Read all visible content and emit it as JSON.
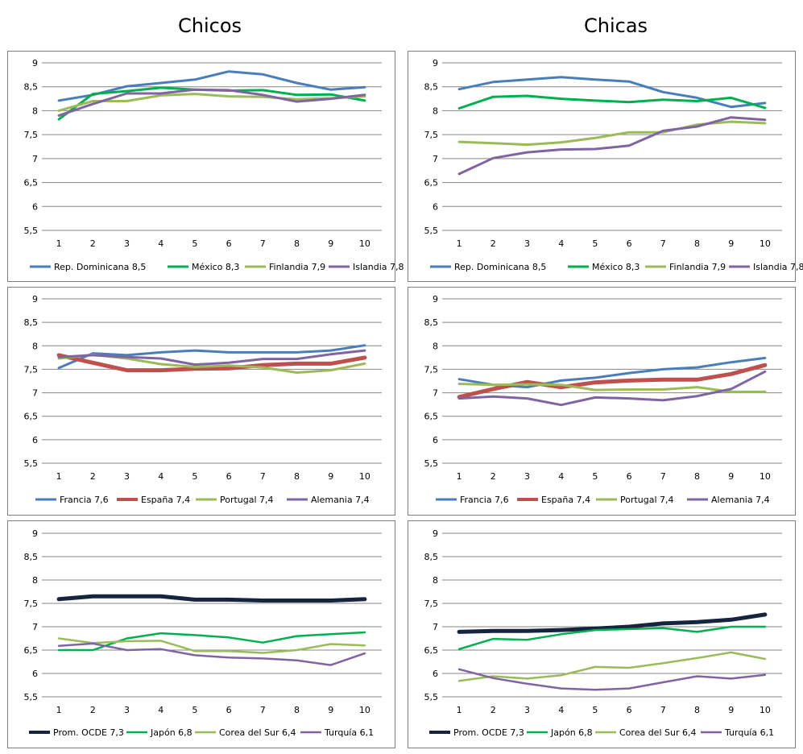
{
  "titles": {
    "left": "Chicos",
    "right": "Chicas"
  },
  "chart_data": [
    {
      "type": "line",
      "group": "Chicos",
      "x": [
        1,
        2,
        3,
        4,
        5,
        6,
        7,
        8,
        9,
        10
      ],
      "ylim": [
        5.5,
        9
      ],
      "yticks": [
        "5,5",
        "6",
        "6,5",
        "7",
        "7,5",
        "8",
        "8,5",
        "9"
      ],
      "grid": true,
      "legend": "bottom",
      "series": [
        {
          "name": "Rep. Dominicana 8,5",
          "color": "#4a7ebb",
          "width": 3,
          "values": [
            8.21,
            8.33,
            8.51,
            8.58,
            8.65,
            8.82,
            8.76,
            8.58,
            8.44,
            8.49
          ]
        },
        {
          "name": "México 8,3",
          "color": "#00b050",
          "width": 3,
          "values": [
            7.82,
            8.35,
            8.41,
            8.48,
            8.44,
            8.42,
            8.43,
            8.33,
            8.34,
            8.21
          ]
        },
        {
          "name": "Finlandia 7,9",
          "color": "#9bbb59",
          "width": 3,
          "values": [
            8.0,
            8.2,
            8.2,
            8.32,
            8.35,
            8.3,
            8.29,
            8.24,
            8.26,
            8.3
          ]
        },
        {
          "name": "Islandia 7,8",
          "color": "#8064a2",
          "width": 3,
          "values": [
            7.9,
            8.14,
            8.36,
            8.36,
            8.44,
            8.43,
            8.33,
            8.19,
            8.25,
            8.33
          ]
        }
      ]
    },
    {
      "type": "line",
      "group": "Chicas",
      "x": [
        1,
        2,
        3,
        4,
        5,
        6,
        7,
        8,
        9,
        10
      ],
      "ylim": [
        5.5,
        9
      ],
      "yticks": [
        "5,5",
        "6",
        "6,5",
        "7",
        "7,5",
        "8",
        "8,5",
        "9"
      ],
      "grid": true,
      "legend": "bottom",
      "series": [
        {
          "name": "Rep. Dominicana 8,5",
          "color": "#4a7ebb",
          "width": 3,
          "values": [
            8.45,
            8.6,
            8.65,
            8.7,
            8.65,
            8.61,
            8.39,
            8.27,
            8.08,
            8.16
          ]
        },
        {
          "name": "México 8,3",
          "color": "#00b050",
          "width": 3,
          "values": [
            8.05,
            8.29,
            8.31,
            8.25,
            8.21,
            8.18,
            8.23,
            8.2,
            8.27,
            8.06
          ]
        },
        {
          "name": "Finlandia 7,9",
          "color": "#9bbb59",
          "width": 3,
          "values": [
            7.35,
            7.32,
            7.29,
            7.34,
            7.43,
            7.55,
            7.55,
            7.71,
            7.77,
            7.74
          ]
        },
        {
          "name": "Islandia 7,8",
          "color": "#8064a2",
          "width": 3,
          "values": [
            6.68,
            7.01,
            7.13,
            7.19,
            7.2,
            7.27,
            7.58,
            7.67,
            7.86,
            7.81
          ]
        }
      ]
    },
    {
      "type": "line",
      "group": "Chicos",
      "x": [
        1,
        2,
        3,
        4,
        5,
        6,
        7,
        8,
        9,
        10
      ],
      "ylim": [
        5.5,
        9
      ],
      "yticks": [
        "5,5",
        "6",
        "6,5",
        "7",
        "7,5",
        "8",
        "8,5",
        "9"
      ],
      "grid": true,
      "legend": "bottom",
      "series": [
        {
          "name": "Francia 7,6",
          "color": "#4a7ebb",
          "width": 3,
          "values": [
            7.53,
            7.84,
            7.8,
            7.86,
            7.9,
            7.86,
            7.86,
            7.86,
            7.9,
            8.01
          ]
        },
        {
          "name": "España 7,4",
          "color": "#c0504d",
          "width": 5,
          "values": [
            7.8,
            7.64,
            7.48,
            7.48,
            7.51,
            7.52,
            7.59,
            7.62,
            7.62,
            7.75
          ]
        },
        {
          "name": "Portugal 7,4",
          "color": "#9bbb59",
          "width": 3,
          "values": [
            7.73,
            7.81,
            7.73,
            7.61,
            7.55,
            7.58,
            7.54,
            7.43,
            7.48,
            7.62
          ]
        },
        {
          "name": "Alemania 7,4",
          "color": "#8064a2",
          "width": 3,
          "values": [
            7.76,
            7.8,
            7.76,
            7.73,
            7.6,
            7.64,
            7.72,
            7.72,
            7.82,
            7.9
          ]
        }
      ]
    },
    {
      "type": "line",
      "group": "Chicas",
      "x": [
        1,
        2,
        3,
        4,
        5,
        6,
        7,
        8,
        9,
        10
      ],
      "ylim": [
        5.5,
        9
      ],
      "yticks": [
        "5,5",
        "6",
        "6,5",
        "7",
        "7,5",
        "8",
        "8,5",
        "9"
      ],
      "grid": true,
      "legend": "bottom",
      "series": [
        {
          "name": "Francia 7,6",
          "color": "#4a7ebb",
          "width": 3,
          "values": [
            7.29,
            7.17,
            7.12,
            7.26,
            7.32,
            7.42,
            7.5,
            7.54,
            7.65,
            7.74
          ]
        },
        {
          "name": "España 7,4",
          "color": "#c0504d",
          "width": 5,
          "values": [
            6.91,
            7.08,
            7.23,
            7.12,
            7.22,
            7.26,
            7.28,
            7.28,
            7.4,
            7.59
          ]
        },
        {
          "name": "Portugal 7,4",
          "color": "#9bbb59",
          "width": 3,
          "values": [
            7.19,
            7.17,
            7.18,
            7.17,
            7.06,
            7.07,
            7.07,
            7.12,
            7.02,
            7.02
          ]
        },
        {
          "name": "Alemania 7,4",
          "color": "#8064a2",
          "width": 3,
          "values": [
            6.88,
            6.92,
            6.88,
            6.74,
            6.9,
            6.88,
            6.84,
            6.93,
            7.08,
            7.45
          ]
        }
      ]
    },
    {
      "type": "line",
      "group": "Chicos",
      "x": [
        1,
        2,
        3,
        4,
        5,
        6,
        7,
        8,
        9,
        10
      ],
      "ylim": [
        5.5,
        9
      ],
      "yticks": [
        "5,5",
        "6",
        "6,5",
        "7",
        "7,5",
        "8",
        "8,5",
        "9"
      ],
      "grid": true,
      "legend": "bottom",
      "series": [
        {
          "name": "Prom. OCDE 7,3",
          "color": "#17243f",
          "width": 5,
          "values": [
            7.59,
            7.65,
            7.65,
            7.65,
            7.58,
            7.58,
            7.56,
            7.56,
            7.56,
            7.59
          ]
        },
        {
          "name": "Japón 6,8",
          "color": "#00b050",
          "width": 2.5,
          "values": [
            6.5,
            6.5,
            6.75,
            6.86,
            6.82,
            6.77,
            6.66,
            6.8,
            6.84,
            6.88
          ]
        },
        {
          "name": "Corea del Sur 6,4",
          "color": "#9bbb59",
          "width": 2.5,
          "values": [
            6.75,
            6.65,
            6.69,
            6.7,
            6.48,
            6.48,
            6.44,
            6.5,
            6.63,
            6.6
          ]
        },
        {
          "name": "Turquía 6,1",
          "color": "#8064a2",
          "width": 2.5,
          "values": [
            6.59,
            6.64,
            6.5,
            6.52,
            6.39,
            6.34,
            6.32,
            6.28,
            6.18,
            6.43
          ]
        }
      ]
    },
    {
      "type": "line",
      "group": "Chicas",
      "x": [
        1,
        2,
        3,
        4,
        5,
        6,
        7,
        8,
        9,
        10
      ],
      "ylim": [
        5.5,
        9
      ],
      "yticks": [
        "5,5",
        "6",
        "6,5",
        "7",
        "7,5",
        "8",
        "8,5",
        "9"
      ],
      "grid": true,
      "legend": "bottom",
      "series": [
        {
          "name": "Prom. OCDE 7,3",
          "color": "#17243f",
          "width": 5,
          "values": [
            6.89,
            6.91,
            6.91,
            6.93,
            6.96,
            7.0,
            7.07,
            7.1,
            7.15,
            7.26
          ]
        },
        {
          "name": "Japón 6,8",
          "color": "#00b050",
          "width": 2.5,
          "values": [
            6.52,
            6.74,
            6.72,
            6.84,
            6.93,
            6.95,
            6.97,
            6.89,
            7.0,
            7.0
          ]
        },
        {
          "name": "Corea del Sur 6,4",
          "color": "#9bbb59",
          "width": 2.5,
          "values": [
            5.84,
            5.94,
            5.89,
            5.96,
            6.14,
            6.12,
            6.22,
            6.33,
            6.45,
            6.31
          ]
        },
        {
          "name": "Turquía 6,1",
          "color": "#8064a2",
          "width": 2.5,
          "values": [
            6.09,
            5.9,
            5.78,
            5.68,
            5.65,
            5.68,
            5.81,
            5.94,
            5.89,
            5.97
          ]
        }
      ]
    }
  ]
}
